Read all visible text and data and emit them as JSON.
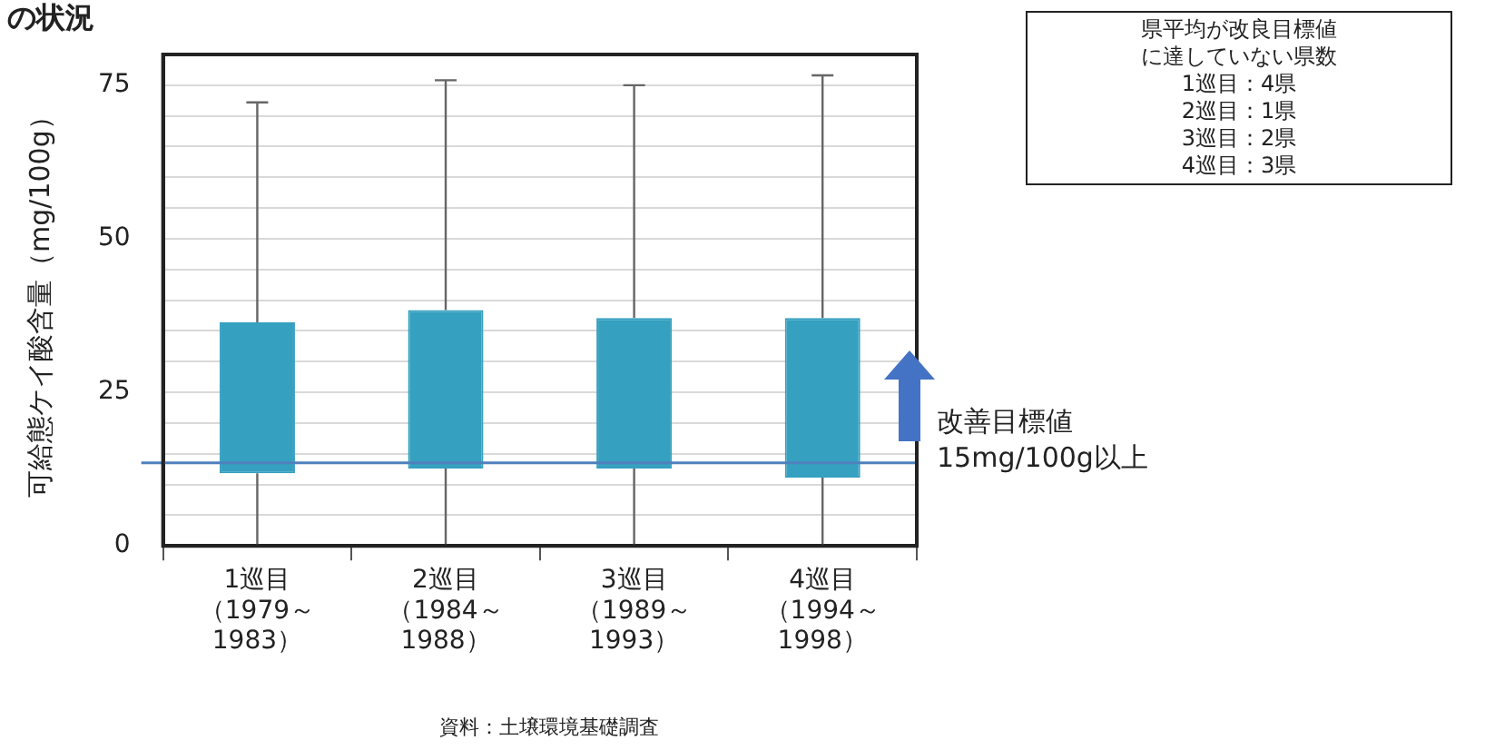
{
  "chart_data": {
    "type": "box",
    "title": "の状況",
    "ylabel": "可給態ケイ酸含量（mg/100g）",
    "categories": [
      "1巡目（1979～1983）",
      "2巡目（1984～1988）",
      "3巡目（1989～1993）",
      "4巡目（1994～1998）"
    ],
    "color": "#35a0c0",
    "boxes": [
      {
        "low": 0,
        "q1": 11.8,
        "q3": 36.4,
        "high": 72.2
      },
      {
        "low": 0,
        "q1": 12.6,
        "q3": 38.4,
        "high": 75.8
      },
      {
        "low": 0,
        "q1": 12.6,
        "q3": 37.1,
        "high": 75
      },
      {
        "low": 0,
        "q1": 11.1,
        "q3": 37.1,
        "high": 76.6
      }
    ],
    "ylim": [
      0,
      80
    ],
    "yticks": [
      0,
      {
        "value": 5,
        "label": null
      },
      {
        "value": 10,
        "label": null
      },
      {
        "value": 15,
        "label": null
      },
      {
        "value": 20,
        "label": null
      },
      25,
      {
        "value": 30,
        "label": null
      },
      {
        "value": 35,
        "label": null
      },
      {
        "value": 40,
        "label": null
      },
      {
        "value": 45,
        "label": null
      },
      50,
      {
        "value": 55,
        "label": null
      },
      {
        "value": 60,
        "label": null
      },
      {
        "value": 65,
        "label": null
      },
      {
        "value": 70,
        "label": null
      },
      75,
      {
        "value": 80,
        "label": null
      }
    ],
    "grid": "y",
    "ref_lines": [
      {
        "axis": "y",
        "value": 13.5,
        "label": "改善目標値\n15mg/100g以上",
        "color": "#4f81bd"
      }
    ],
    "annotations": [
      "県平均が改良目標値に達していない県数",
      "1巡目：4県",
      "2巡目：1県",
      "3巡目：2県",
      "4巡目：3県",
      "資料：土壌環境基礎調査"
    ]
  }
}
